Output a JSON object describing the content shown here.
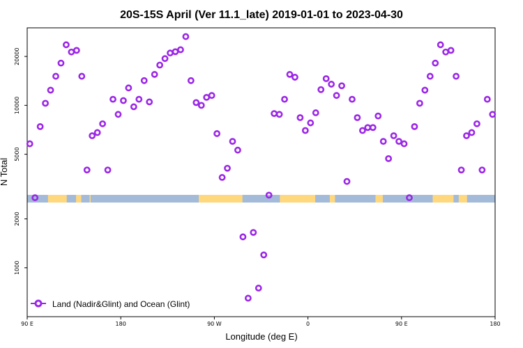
{
  "chart_data": {
    "type": "scatter",
    "title": "20S-15S April (Ver 11.1_late)   2019-01-01 to 2023-04-30",
    "xlabel": "Longitude (deg E)",
    "ylabel": "N Total",
    "x_ticks": [
      {
        "value": 90,
        "label": "90 E"
      },
      {
        "value": 180,
        "label": "180"
      },
      {
        "value": 270,
        "label": "90 W"
      },
      {
        "value": 360,
        "label": "0"
      },
      {
        "value": 450,
        "label": "90 E"
      },
      {
        "value": 540,
        "label": "180"
      }
    ],
    "xlim": [
      90,
      540
    ],
    "ylim": [
      500,
      30000
    ],
    "y_scale": "log",
    "y_ticks": [
      {
        "value": 1000,
        "label": "1000"
      },
      {
        "value": 2000,
        "label": "2000"
      },
      {
        "value": 5000,
        "label": "5000"
      },
      {
        "value": 10000,
        "label": "10000"
      },
      {
        "value": 20000,
        "label": "20000"
      }
    ],
    "legend": {
      "position": "bottom-left",
      "label": "Land (Nadir&Glint) and Ocean (Glint)"
    },
    "colors": {
      "series": "#9b27e6",
      "ocean": "#a3bbd8",
      "land": "#ffd87e"
    },
    "grid": false,
    "series": [
      {
        "name": "Land (Nadir&Glint) and Ocean (Glint)",
        "x": [
          92.5,
          97.5,
          102.5,
          107.5,
          112.5,
          117.5,
          122.5,
          127.5,
          132.5,
          137.5,
          142.5,
          147.5,
          152.5,
          157.5,
          162.5,
          167.5,
          172.5,
          177.5,
          182.5,
          187.5,
          192.5,
          197.5,
          202.5,
          207.5,
          212.5,
          217.5,
          222.5,
          227.5,
          232.5,
          237.5,
          242.5,
          247.5,
          252.5,
          257.5,
          262.5,
          267.5,
          272.5,
          277.5,
          282.5,
          287.5,
          292.5,
          297.5,
          302.5,
          307.5,
          312.5,
          317.5,
          322.5,
          327.5,
          332.5,
          337.5,
          342.5,
          347.5,
          352.5,
          357.5,
          362.5,
          367.5,
          372.5,
          377.5,
          382.5,
          387.5,
          392.5,
          397.5,
          402.5,
          407.5,
          412.5,
          417.5,
          422.5,
          427.5,
          432.5,
          437.5,
          442.5,
          447.5,
          452.5,
          457.5,
          462.5,
          467.5,
          472.5,
          477.5,
          482.5,
          487.5,
          492.5,
          497.5,
          502.5,
          507.5,
          512.5,
          517.5,
          522.5,
          527.5,
          532.5,
          537.5
        ],
        "values": [
          5800,
          2700,
          7400,
          10300,
          12400,
          15100,
          18200,
          23600,
          21300,
          21800,
          15100,
          4000,
          6500,
          6800,
          7700,
          4000,
          10900,
          8800,
          10700,
          12800,
          9800,
          10900,
          14200,
          10500,
          15500,
          17700,
          19400,
          21000,
          21400,
          22000,
          26500,
          14200,
          10400,
          10000,
          11200,
          11500,
          6700,
          3600,
          4100,
          6000,
          5300,
          1550,
          650,
          1650,
          750,
          1200,
          2800,
          8900,
          8800,
          10900,
          15500,
          14900,
          8400,
          7000,
          7800,
          9000,
          12500,
          14600,
          13500,
          11500,
          13200,
          3400,
          10900,
          8400,
          7000,
          7300,
          7300,
          8600,
          6000,
          4700,
          6500,
          6000,
          5800,
          2700,
          7400,
          10300,
          12400,
          15100,
          18200,
          23600,
          21300,
          21800,
          15100,
          4000,
          6500,
          6800,
          7700,
          4000,
          10900,
          8800
        ]
      }
    ]
  }
}
